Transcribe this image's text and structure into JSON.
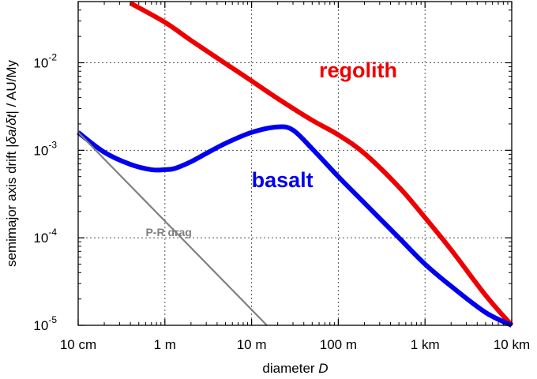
{
  "chart_data": {
    "type": "line",
    "xlabel": "diameter D",
    "ylabel": "semimajor axis drift |δa/δt| / AU/My",
    "x_scale": "log",
    "y_scale": "log",
    "xlim": [
      0.1,
      10000
    ],
    "ylim": [
      1e-05,
      0.05
    ],
    "grid": true,
    "x_ticks": [
      {
        "value": 0.1,
        "label": "10 cm"
      },
      {
        "value": 1,
        "label": "1 m"
      },
      {
        "value": 10,
        "label": "10 m"
      },
      {
        "value": 100,
        "label": "100 m"
      },
      {
        "value": 1000,
        "label": "1 km"
      },
      {
        "value": 10000,
        "label": "10 km"
      }
    ],
    "y_ticks": [
      {
        "value": 1e-05,
        "base": "10",
        "exp": "-5"
      },
      {
        "value": 0.0001,
        "base": "10",
        "exp": "-4"
      },
      {
        "value": 0.001,
        "base": "10",
        "exp": "-3"
      },
      {
        "value": 0.01,
        "base": "10",
        "exp": "-2"
      }
    ],
    "series": [
      {
        "name": "regolith",
        "color": "#ee0000",
        "label_at": [
          60,
          0.0068
        ],
        "points": [
          [
            0.4,
            0.048
          ],
          [
            1,
            0.029
          ],
          [
            2,
            0.018
          ],
          [
            5,
            0.0098
          ],
          [
            10,
            0.0062
          ],
          [
            20,
            0.0039
          ],
          [
            50,
            0.0022
          ],
          [
            100,
            0.0015
          ],
          [
            200,
            0.00092
          ],
          [
            500,
            0.00038
          ],
          [
            1000,
            0.00017
          ],
          [
            2000,
            7.3e-05
          ],
          [
            5000,
            2.2e-05
          ],
          [
            10000,
            1e-05
          ]
        ]
      },
      {
        "name": "basalt",
        "color": "#0000ee",
        "label_at": [
          10,
          0.00038
        ],
        "points": [
          [
            0.1,
            0.0016
          ],
          [
            0.2,
            0.00095
          ],
          [
            0.4,
            0.00069
          ],
          [
            0.7,
            0.0006
          ],
          [
            1,
            0.0006
          ],
          [
            1.3,
            0.00062
          ],
          [
            2,
            0.00074
          ],
          [
            3,
            0.00092
          ],
          [
            5,
            0.0012
          ],
          [
            10,
            0.0016
          ],
          [
            20,
            0.00185
          ],
          [
            30,
            0.0017
          ],
          [
            50,
            0.00104
          ],
          [
            100,
            0.0005
          ],
          [
            200,
            0.00025
          ],
          [
            500,
            0.0001
          ],
          [
            1000,
            5e-05
          ],
          [
            2000,
            2.8e-05
          ],
          [
            5000,
            1.4e-05
          ],
          [
            10000,
            1e-05
          ]
        ]
      },
      {
        "name": "P-R drag",
        "color": "#808080",
        "label_at": [
          0.6,
          0.000105
        ],
        "points": [
          [
            0.1,
            0.0016
          ],
          [
            15,
            1e-05
          ]
        ]
      }
    ]
  }
}
